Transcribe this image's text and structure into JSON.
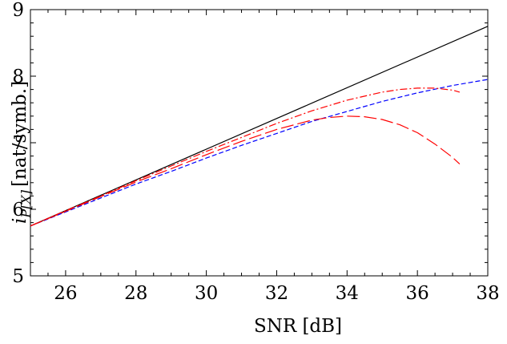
{
  "chart_data": {
    "type": "line",
    "xlabel": "SNR [dB]",
    "ylabel": {
      "var": "i",
      "sub": "P[X]",
      "unit": "[nat/symb.]"
    },
    "xlim": [
      25,
      38
    ],
    "ylim": [
      5,
      9
    ],
    "xticks": [
      26,
      28,
      30,
      32,
      34,
      36,
      38
    ],
    "yticks": [
      5,
      6,
      7,
      8,
      9
    ],
    "grid": false,
    "series": [
      {
        "color": "#000000",
        "style": "solid",
        "x": [
          25,
          38
        ],
        "y": [
          5.75,
          8.75
        ]
      },
      {
        "color": "#0000ff",
        "style": "dashed",
        "x": [
          25,
          26,
          27,
          28,
          29,
          30,
          31,
          32,
          33,
          34,
          35,
          36,
          37,
          38
        ],
        "y": [
          5.75,
          5.96,
          6.17,
          6.38,
          6.57,
          6.77,
          6.96,
          7.14,
          7.32,
          7.47,
          7.62,
          7.75,
          7.86,
          7.95
        ]
      },
      {
        "color": "#ff0000",
        "style": "dashdot",
        "x": [
          25,
          26,
          27,
          28,
          29,
          30,
          31,
          32,
          33,
          34,
          35,
          35.5,
          36,
          36.5,
          37,
          37.2
        ],
        "y": [
          5.75,
          5.98,
          6.2,
          6.43,
          6.65,
          6.87,
          7.08,
          7.29,
          7.48,
          7.64,
          7.76,
          7.8,
          7.82,
          7.82,
          7.79,
          7.76
        ]
      },
      {
        "color": "#ff0000",
        "style": "longdash",
        "x": [
          25,
          26,
          27,
          28,
          29,
          30,
          31,
          32,
          33,
          33.5,
          34,
          34.5,
          35,
          35.5,
          36,
          36.5,
          37,
          37.2
        ],
        "y": [
          5.75,
          5.97,
          6.19,
          6.41,
          6.61,
          6.82,
          7.02,
          7.2,
          7.34,
          7.38,
          7.4,
          7.39,
          7.35,
          7.27,
          7.15,
          6.98,
          6.78,
          6.68
        ]
      }
    ]
  }
}
